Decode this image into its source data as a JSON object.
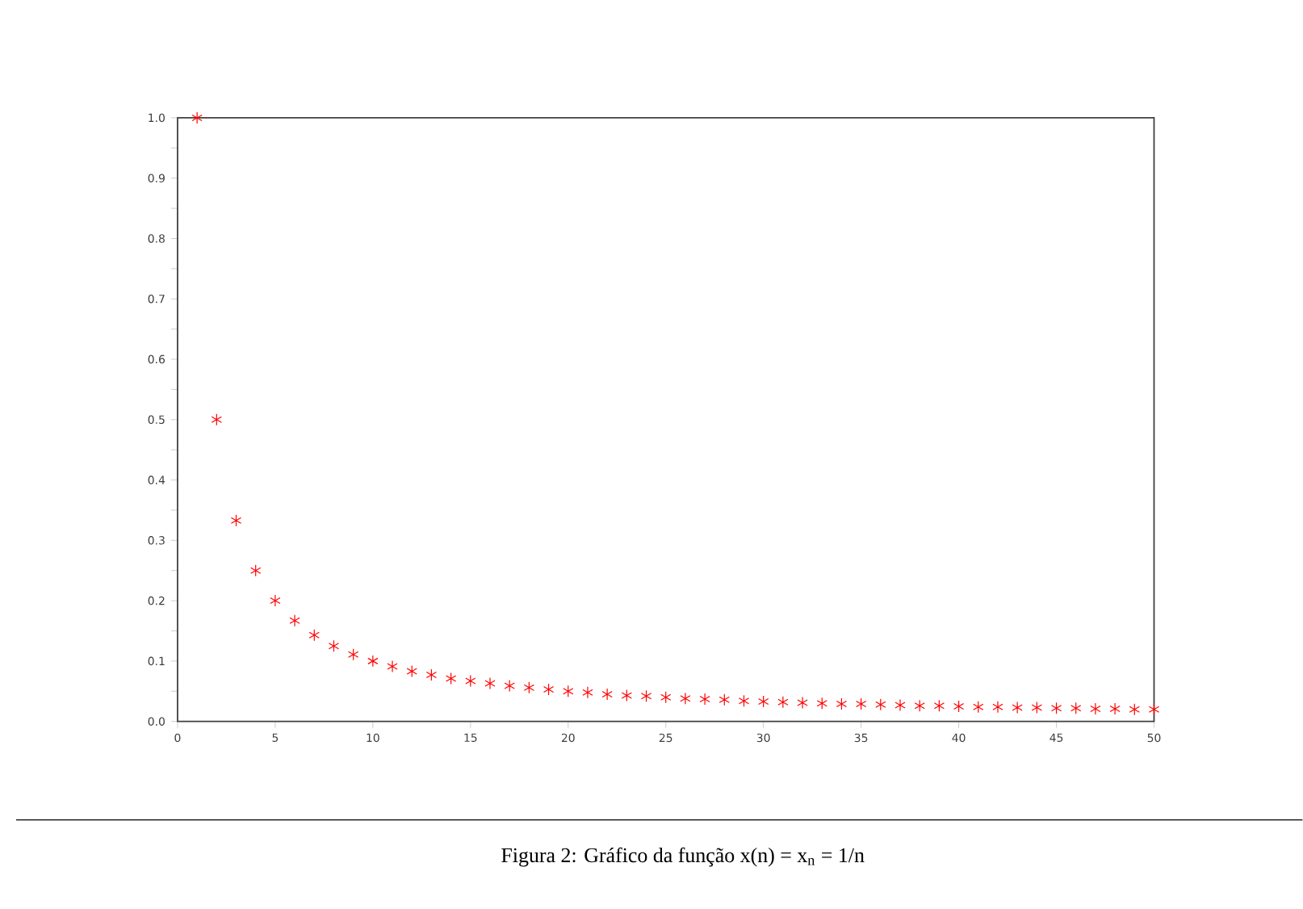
{
  "chart_data": {
    "type": "scatter",
    "marker": "cross",
    "grid": false,
    "x": [
      1,
      2,
      3,
      4,
      5,
      6,
      7,
      8,
      9,
      10,
      11,
      12,
      13,
      14,
      15,
      16,
      17,
      18,
      19,
      20,
      21,
      22,
      23,
      24,
      25,
      26,
      27,
      28,
      29,
      30,
      31,
      32,
      33,
      34,
      35,
      36,
      37,
      38,
      39,
      40,
      41,
      42,
      43,
      44,
      45,
      46,
      47,
      48,
      49,
      50
    ],
    "series": [
      {
        "color": "#ff0000",
        "values": [
          1.0,
          0.5,
          0.333,
          0.25,
          0.2,
          0.167,
          0.143,
          0.125,
          0.111,
          0.1,
          0.091,
          0.083,
          0.077,
          0.071,
          0.067,
          0.063,
          0.059,
          0.056,
          0.053,
          0.05,
          0.048,
          0.045,
          0.043,
          0.042,
          0.04,
          0.038,
          0.037,
          0.036,
          0.034,
          0.033,
          0.032,
          0.031,
          0.03,
          0.029,
          0.029,
          0.028,
          0.027,
          0.026,
          0.026,
          0.025,
          0.024,
          0.024,
          0.023,
          0.023,
          0.022,
          0.022,
          0.021,
          0.021,
          0.02,
          0.02
        ]
      }
    ],
    "xlim": [
      0,
      50
    ],
    "ylim": [
      0,
      1
    ],
    "xticks": [
      0,
      5,
      10,
      15,
      20,
      25,
      30,
      35,
      40,
      45,
      50
    ],
    "yticks": [
      {
        "value": 0,
        "label": "0.0"
      },
      {
        "value": 0.05,
        "label": null
      },
      0.1,
      {
        "value": 0.15,
        "label": null
      },
      0.2,
      {
        "value": 0.25,
        "label": null
      },
      0.3,
      {
        "value": 0.35,
        "label": null
      },
      0.4,
      {
        "value": 0.45,
        "label": null
      },
      0.5,
      {
        "value": 0.55,
        "label": null
      },
      0.6,
      {
        "value": 0.65,
        "label": null
      },
      0.7,
      {
        "value": 0.75,
        "label": null
      },
      0.8,
      {
        "value": 0.85,
        "label": null
      },
      0.9,
      {
        "value": 0.95,
        "label": null
      },
      {
        "value": 1,
        "label": "1.0"
      }
    ],
    "annotations": [
      "Figura 2: Gráfico da função x(n) = x$_{n}$ = 1/n"
    ]
  }
}
